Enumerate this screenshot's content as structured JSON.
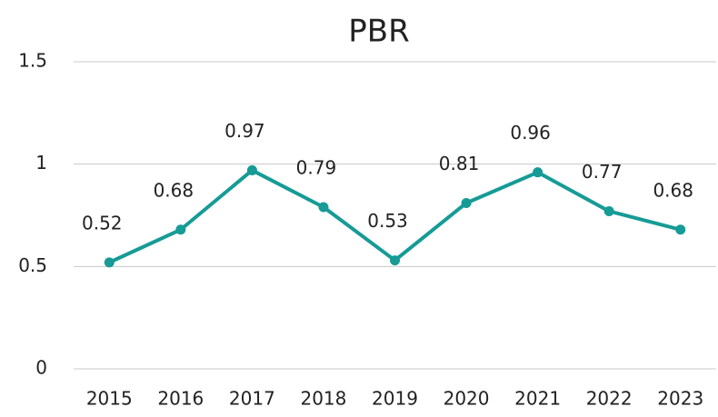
{
  "chart_data": {
    "type": "line",
    "title": "PBR",
    "categories": [
      "2015",
      "2016",
      "2017",
      "2018",
      "2019",
      "2020",
      "2021",
      "2022",
      "2023"
    ],
    "series": [
      {
        "name": "PBR",
        "color": "#169b96",
        "values": [
          0.52,
          0.68,
          0.97,
          0.79,
          0.53,
          0.81,
          0.96,
          0.77,
          0.68
        ]
      }
    ],
    "ylim": [
      0,
      1.5
    ],
    "yticks": [
      0,
      0.5,
      1,
      1.5
    ],
    "grid": true
  }
}
